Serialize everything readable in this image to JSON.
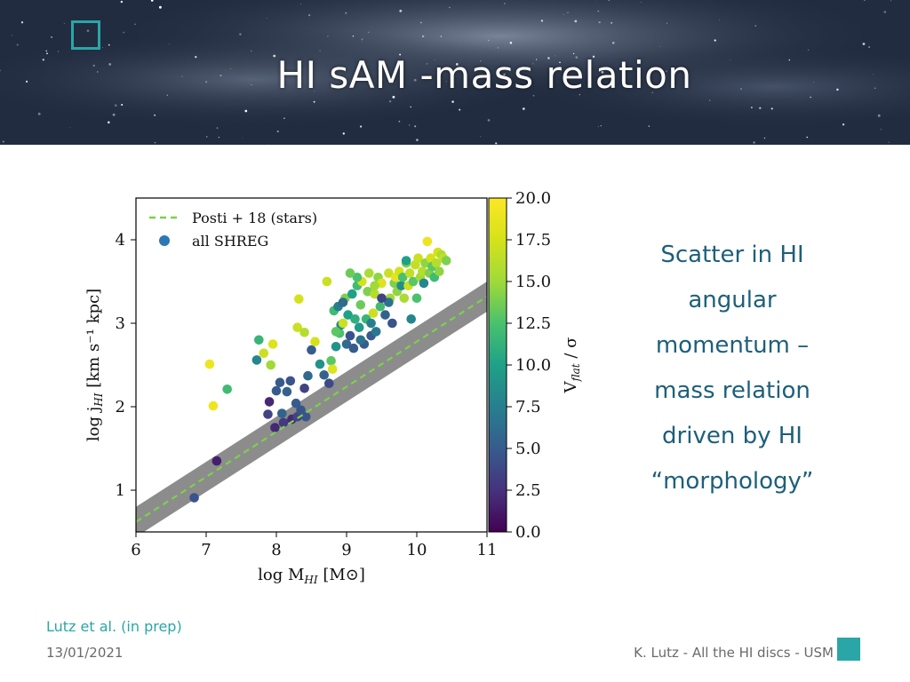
{
  "slide": {
    "title": "HI sAM -mass relation",
    "side_text": [
      "Scatter in HI",
      "angular",
      "momentum –",
      "mass relation",
      "driven by HI",
      "“morphology”"
    ],
    "citation": "Lutz et al. (in prep)",
    "date": "13/01/2021",
    "footer": "K. Lutz - All the HI discs - USM",
    "colors": {
      "accent": "#2aa6a6",
      "side_text": "#1d5f7a",
      "banner": "#27344a"
    }
  },
  "chart_data": {
    "type": "scatter",
    "xlabel_main": "log M",
    "xlabel_sub": "HI",
    "xlabel_unit": " [M⊙]",
    "ylabel_main": "log j",
    "ylabel_sub": "HI",
    "ylabel_unit": " [km s⁻¹ kpc]",
    "xlim": [
      6,
      11
    ],
    "ylim": [
      0.5,
      4.5
    ],
    "xticks": [
      "6",
      "7",
      "8",
      "9",
      "10",
      "11"
    ],
    "yticks": [
      "1",
      "2",
      "3",
      "4"
    ],
    "colorbar": {
      "label_main": "V",
      "label_sub": "flat",
      "label_unit": " / σ",
      "range": [
        0,
        20
      ],
      "ticks": [
        "0.0",
        "2.5",
        "5.0",
        "7.5",
        "10.0",
        "12.5",
        "15.0",
        "17.5",
        "20.0"
      ],
      "colormap": "viridis"
    },
    "legend": {
      "placement": "top-left",
      "entries": [
        "Posti + 18 (stars)",
        "all SHREG"
      ],
      "line_color": "#7bd24a",
      "marker_color": "#2c78b4"
    },
    "relation": {
      "name": "Posti + 18 (stars)",
      "line": [
        [
          6,
          0.62
        ],
        [
          11,
          3.32
        ]
      ],
      "band_halfwidth": 0.18
    },
    "series": [
      {
        "name": "all SHREG",
        "points": [
          [
            6.83,
            0.91,
            4.5
          ],
          [
            7.15,
            1.35,
            1.5
          ],
          [
            7.05,
            2.51,
            19.0
          ],
          [
            7.1,
            2.01,
            19.0
          ],
          [
            7.3,
            2.21,
            12.0
          ],
          [
            7.72,
            2.56,
            8.0
          ],
          [
            7.75,
            2.8,
            11.5
          ],
          [
            7.82,
            2.64,
            17.0
          ],
          [
            7.92,
            2.5,
            15.0
          ],
          [
            7.95,
            2.75,
            18.0
          ],
          [
            7.88,
            1.91,
            3.5
          ],
          [
            7.9,
            2.06,
            2.0
          ],
          [
            7.98,
            1.75,
            2.0
          ],
          [
            8.0,
            2.19,
            5.0
          ],
          [
            8.05,
            2.29,
            5.0
          ],
          [
            8.08,
            1.92,
            5.5
          ],
          [
            8.1,
            1.81,
            3.0
          ],
          [
            8.15,
            2.18,
            5.5
          ],
          [
            8.2,
            2.31,
            4.5
          ],
          [
            8.22,
            1.85,
            2.0
          ],
          [
            8.28,
            2.04,
            5.0
          ],
          [
            8.3,
            1.88,
            3.5
          ],
          [
            8.35,
            1.96,
            4.5
          ],
          [
            8.4,
            2.22,
            3.5
          ],
          [
            8.42,
            1.88,
            4.5
          ],
          [
            8.45,
            2.37,
            6.0
          ],
          [
            8.5,
            2.68,
            5.0
          ],
          [
            8.55,
            2.78,
            17.5
          ],
          [
            8.3,
            2.95,
            17.0
          ],
          [
            8.32,
            3.29,
            17.5
          ],
          [
            8.4,
            2.89,
            16.0
          ],
          [
            8.62,
            2.51,
            9.0
          ],
          [
            8.68,
            2.38,
            5.5
          ],
          [
            8.72,
            3.5,
            17.0
          ],
          [
            8.75,
            2.28,
            4.0
          ],
          [
            8.78,
            2.55,
            13.0
          ],
          [
            8.8,
            2.45,
            18.0
          ],
          [
            8.82,
            3.15,
            12.0
          ],
          [
            8.85,
            2.72,
            9.0
          ],
          [
            8.88,
            3.2,
            7.5
          ],
          [
            8.9,
            2.88,
            12.5
          ],
          [
            8.92,
            2.98,
            8.0
          ],
          [
            8.95,
            3.0,
            17.0
          ],
          [
            8.98,
            3.3,
            14.0
          ],
          [
            9.0,
            2.75,
            6.0
          ],
          [
            9.02,
            3.1,
            10.0
          ],
          [
            9.05,
            2.85,
            4.5
          ],
          [
            9.08,
            3.35,
            10.0
          ],
          [
            9.1,
            2.7,
            5.0
          ],
          [
            9.12,
            3.05,
            11.0
          ],
          [
            9.15,
            3.45,
            12.0
          ],
          [
            9.18,
            2.95,
            9.5
          ],
          [
            9.2,
            3.22,
            13.5
          ],
          [
            9.22,
            3.5,
            17.5
          ],
          [
            9.25,
            2.75,
            5.0
          ],
          [
            9.28,
            3.05,
            11.5
          ],
          [
            9.3,
            3.38,
            14.0
          ],
          [
            9.32,
            3.6,
            15.5
          ],
          [
            9.35,
            2.85,
            5.0
          ],
          [
            9.38,
            3.12,
            17.0
          ],
          [
            9.4,
            3.35,
            16.0
          ],
          [
            9.42,
            2.9,
            7.0
          ],
          [
            9.45,
            3.55,
            14.5
          ],
          [
            9.48,
            3.2,
            12.0
          ],
          [
            9.5,
            3.48,
            18.0
          ],
          [
            9.55,
            3.1,
            5.5
          ],
          [
            9.6,
            3.6,
            17.0
          ],
          [
            9.62,
            3.3,
            15.0
          ],
          [
            9.65,
            3.0,
            4.5
          ],
          [
            9.68,
            3.48,
            14.0
          ],
          [
            9.7,
            3.55,
            18.5
          ],
          [
            9.72,
            3.38,
            14.5
          ],
          [
            9.75,
            3.62,
            17.5
          ],
          [
            9.78,
            3.45,
            8.5
          ],
          [
            9.8,
            3.55,
            12.5
          ],
          [
            9.82,
            3.3,
            15.5
          ],
          [
            9.85,
            3.72,
            14.0
          ],
          [
            9.88,
            3.45,
            17.0
          ],
          [
            9.9,
            3.6,
            16.5
          ],
          [
            9.92,
            3.05,
            8.0
          ],
          [
            9.95,
            3.5,
            13.0
          ],
          [
            9.98,
            3.7,
            16.5
          ],
          [
            10.0,
            3.3,
            12.5
          ],
          [
            10.02,
            3.78,
            17.0
          ],
          [
            10.05,
            3.55,
            15.0
          ],
          [
            10.08,
            3.62,
            16.0
          ],
          [
            10.1,
            3.48,
            8.0
          ],
          [
            10.12,
            3.72,
            14.5
          ],
          [
            10.15,
            3.98,
            19.0
          ],
          [
            10.18,
            3.6,
            14.0
          ],
          [
            10.2,
            3.78,
            17.5
          ],
          [
            10.22,
            3.68,
            13.0
          ],
          [
            10.25,
            3.55,
            12.0
          ],
          [
            10.28,
            3.72,
            16.0
          ],
          [
            10.3,
            3.85,
            17.5
          ],
          [
            10.32,
            3.62,
            14.5
          ],
          [
            10.35,
            3.82,
            15.5
          ],
          [
            10.38,
            3.78,
            16.5
          ],
          [
            10.42,
            3.75,
            14.0
          ],
          [
            9.6,
            3.25,
            6.5
          ],
          [
            9.5,
            3.3,
            3.5
          ],
          [
            9.85,
            3.75,
            10.0
          ],
          [
            9.15,
            3.55,
            12.5
          ],
          [
            9.05,
            3.6,
            13.5
          ],
          [
            8.95,
            3.25,
            6.0
          ],
          [
            9.4,
            3.45,
            15.0
          ],
          [
            9.2,
            2.8,
            6.5
          ],
          [
            8.85,
            2.9,
            13.0
          ],
          [
            9.35,
            3.0,
            7.5
          ]
        ]
      }
    ]
  }
}
